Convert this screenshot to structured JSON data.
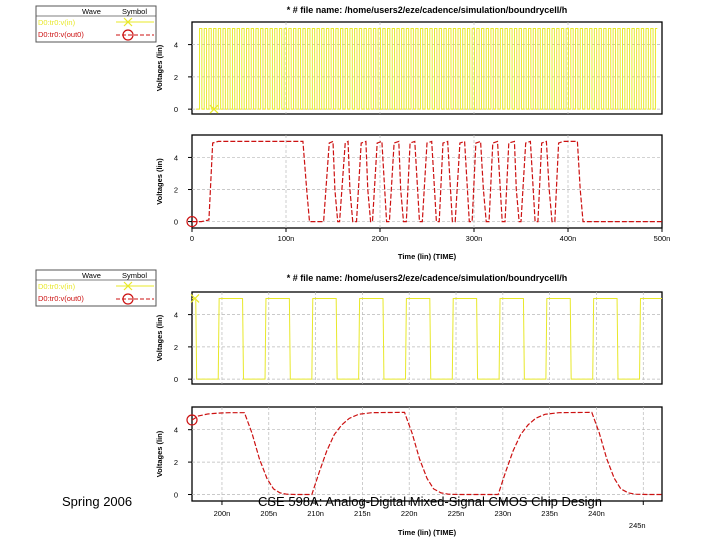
{
  "footer": {
    "left": "Spring 2006",
    "right": "CSE 598A: Analog-Digital Mixed-Signal CMOS Chip Design"
  },
  "legend_header": {
    "wave": "Wave",
    "symbol": "Symbol"
  },
  "colors": {
    "input": "#e8e82a",
    "output": "#cc1111",
    "grid": "#b8b8b8",
    "axis": "#000000"
  },
  "chart_data": [
    {
      "type": "line",
      "title": "* # file name: /home/users2/eze/cadence/simulation/boundrycell/h",
      "legend": [
        "D0:tr0:v(in)",
        "D0:tr0:v(out0)"
      ],
      "xlabel": "Time (lin) (TIME)",
      "x_ticks": [
        "0",
        "100n",
        "200n",
        "300n",
        "400n",
        "500n"
      ],
      "xlim": [
        0,
        500
      ],
      "x_unit": "ns",
      "top_panel": {
        "ylabel": "Voltages (lin)",
        "y_ticks": [
          "0",
          "2",
          "4"
        ],
        "ylim": [
          -0.3,
          5.4
        ],
        "series": [
          {
            "name": "D0:tr0:v(in)",
            "description": "square wave toggling 0 V to 5 V, period about 5 ns",
            "low": 0,
            "high": 5,
            "start": 8,
            "end": 495,
            "period": 5
          }
        ]
      },
      "bottom_panel": {
        "ylabel": "Voltages (lin)",
        "y_ticks": [
          "0",
          "2",
          "4"
        ],
        "ylim": [
          -0.4,
          5.4
        ],
        "series": [
          {
            "name": "D0:tr0:v(out0)",
            "points": [
              [
                0,
                0
              ],
              [
                10,
                0
              ],
              [
                18,
                0.1
              ],
              [
                22,
                4.9
              ],
              [
                28,
                5.0
              ],
              [
                118,
                5.0
              ],
              [
                122,
                2.0
              ],
              [
                125,
                0.0
              ],
              [
                140,
                0.0
              ],
              [
                146,
                4.9
              ],
              [
                150,
                5.0
              ],
              [
                152,
                2.0
              ],
              [
                155,
                0.0
              ],
              [
                157,
                0.0
              ],
              [
                163,
                4.9
              ],
              [
                166,
                5.0
              ],
              [
                168,
                2.0
              ],
              [
                171,
                0.0
              ],
              [
                175,
                0.0
              ],
              [
                180,
                4.9
              ],
              [
                185,
                5.0
              ],
              [
                187,
                2.0
              ],
              [
                190,
                0.0
              ],
              [
                192,
                0.0
              ],
              [
                197,
                4.9
              ],
              [
                202,
                5.0
              ],
              [
                205,
                2.0
              ],
              [
                207,
                0.0
              ],
              [
                210,
                0.0
              ],
              [
                215,
                4.9
              ],
              [
                220,
                5.0
              ],
              [
                222,
                2.0
              ],
              [
                225,
                0.0
              ],
              [
                228,
                0.0
              ],
              [
                232,
                4.9
              ],
              [
                237,
                5.0
              ],
              [
                240,
                2.0
              ],
              [
                242,
                0.0
              ],
              [
                245,
                0.0
              ],
              [
                250,
                4.9
              ],
              [
                255,
                5.0
              ],
              [
                258,
                2.0
              ],
              [
                260,
                0.0
              ],
              [
                263,
                0.0
              ],
              [
                267,
                4.9
              ],
              [
                272,
                5.0
              ],
              [
                275,
                2.0
              ],
              [
                277,
                0.0
              ],
              [
                280,
                0.0
              ],
              [
                285,
                4.9
              ],
              [
                290,
                5.0
              ],
              [
                293,
                2.0
              ],
              [
                295,
                0.0
              ],
              [
                298,
                0.0
              ],
              [
                302,
                4.9
              ],
              [
                307,
                5.0
              ],
              [
                310,
                2.0
              ],
              [
                313,
                0.0
              ],
              [
                316,
                0.0
              ],
              [
                320,
                4.9
              ],
              [
                325,
                5.0
              ],
              [
                328,
                2.0
              ],
              [
                330,
                0.0
              ],
              [
                333,
                0.0
              ],
              [
                337,
                4.9
              ],
              [
                343,
                5.0
              ],
              [
                345,
                2.0
              ],
              [
                348,
                0.0
              ],
              [
                350,
                0.0
              ],
              [
                355,
                4.9
              ],
              [
                360,
                5.0
              ],
              [
                363,
                2.0
              ],
              [
                365,
                0.0
              ],
              [
                368,
                0.0
              ],
              [
                372,
                4.9
              ],
              [
                377,
                5.0
              ],
              [
                380,
                2.0
              ],
              [
                383,
                0.0
              ],
              [
                386,
                0.0
              ],
              [
                390,
                4.9
              ],
              [
                395,
                5.0
              ],
              [
                410,
                5.0
              ],
              [
                413,
                2.0
              ],
              [
                416,
                0.0
              ],
              [
                500,
                0.0
              ]
            ]
          }
        ]
      }
    },
    {
      "type": "line",
      "title": "* # file name: /home/users2/eze/cadence/simulation/boundrycell/h",
      "legend": [
        "D0:tr0:v(in)",
        "D0:tr0:v(out0)"
      ],
      "xlabel": "Time (lin) (TIME)",
      "x_ticks": [
        "200n",
        "205n",
        "210n",
        "215n",
        "220n",
        "225n",
        "230n",
        "235n",
        "240n",
        "245n"
      ],
      "xlim": [
        196.8,
        247.0
      ],
      "x_unit": "ns",
      "top_panel": {
        "ylabel": "Voltages (lin)",
        "y_ticks": [
          "0",
          "2",
          "4"
        ],
        "ylim": [
          -0.3,
          5.4
        ],
        "series": [
          {
            "name": "D0:tr0:v(in)",
            "points": [
              [
                196.8,
                5.0
              ],
              [
                197.2,
                5.0
              ],
              [
                197.3,
                0
              ],
              [
                199.6,
                0
              ],
              [
                199.7,
                5.0
              ],
              [
                202.2,
                5.0
              ],
              [
                202.3,
                0
              ],
              [
                204.6,
                0
              ],
              [
                204.7,
                5.0
              ],
              [
                207.2,
                5.0
              ],
              [
                207.3,
                0
              ],
              [
                209.6,
                0
              ],
              [
                209.7,
                5.0
              ],
              [
                212.2,
                5.0
              ],
              [
                212.3,
                0
              ],
              [
                214.6,
                0
              ],
              [
                214.7,
                5.0
              ],
              [
                217.2,
                5.0
              ],
              [
                217.3,
                0
              ],
              [
                219.6,
                0
              ],
              [
                219.7,
                5.0
              ],
              [
                222.2,
                5.0
              ],
              [
                222.3,
                0
              ],
              [
                224.6,
                0
              ],
              [
                224.7,
                5.0
              ],
              [
                227.2,
                5.0
              ],
              [
                227.3,
                0
              ],
              [
                229.6,
                0
              ],
              [
                229.7,
                5.0
              ],
              [
                232.2,
                5.0
              ],
              [
                232.3,
                0
              ],
              [
                234.6,
                0
              ],
              [
                234.7,
                5.0
              ],
              [
                237.2,
                5.0
              ],
              [
                237.3,
                0
              ],
              [
                239.6,
                0
              ],
              [
                239.7,
                5.0
              ],
              [
                242.2,
                5.0
              ],
              [
                242.3,
                0
              ],
              [
                244.6,
                0
              ],
              [
                244.7,
                5.0
              ],
              [
                247.0,
                5.0
              ]
            ]
          }
        ]
      },
      "bottom_panel": {
        "ylabel": "Voltages (lin)",
        "y_ticks": [
          "0",
          "2",
          "4"
        ],
        "ylim": [
          -0.4,
          5.4
        ],
        "series": [
          {
            "name": "D0:tr0:v(out0)",
            "points": [
              [
                196.8,
                4.6
              ],
              [
                197.5,
                4.85
              ],
              [
                198.5,
                4.97
              ],
              [
                199.5,
                5.02
              ],
              [
                200.8,
                5.05
              ],
              [
                202.4,
                5.05
              ],
              [
                203.2,
                3.8
              ],
              [
                204.0,
                2.2
              ],
              [
                204.8,
                1.0
              ],
              [
                205.5,
                0.35
              ],
              [
                206.2,
                0.1
              ],
              [
                206.9,
                0.02
              ],
              [
                208.0,
                0.0
              ],
              [
                209.6,
                0.0
              ],
              [
                210.4,
                1.4
              ],
              [
                211.2,
                2.7
              ],
              [
                212.0,
                3.7
              ],
              [
                212.8,
                4.3
              ],
              [
                213.6,
                4.7
              ],
              [
                214.6,
                4.95
              ],
              [
                216.0,
                5.05
              ],
              [
                219.5,
                5.07
              ],
              [
                220.3,
                3.8
              ],
              [
                221.1,
                2.2
              ],
              [
                221.9,
                1.0
              ],
              [
                222.6,
                0.35
              ],
              [
                223.4,
                0.1
              ],
              [
                224.2,
                0.02
              ],
              [
                225.5,
                0.0
              ],
              [
                229.5,
                0.0
              ],
              [
                230.3,
                1.4
              ],
              [
                231.1,
                2.7
              ],
              [
                231.9,
                3.7
              ],
              [
                232.7,
                4.3
              ],
              [
                233.5,
                4.7
              ],
              [
                234.5,
                4.95
              ],
              [
                236.0,
                5.05
              ],
              [
                239.5,
                5.07
              ],
              [
                240.3,
                3.8
              ],
              [
                241.1,
                2.2
              ],
              [
                241.9,
                1.0
              ],
              [
                242.6,
                0.35
              ],
              [
                243.4,
                0.1
              ],
              [
                244.2,
                0.02
              ],
              [
                245.5,
                0.0
              ],
              [
                247.0,
                0.0
              ]
            ]
          }
        ]
      }
    }
  ]
}
